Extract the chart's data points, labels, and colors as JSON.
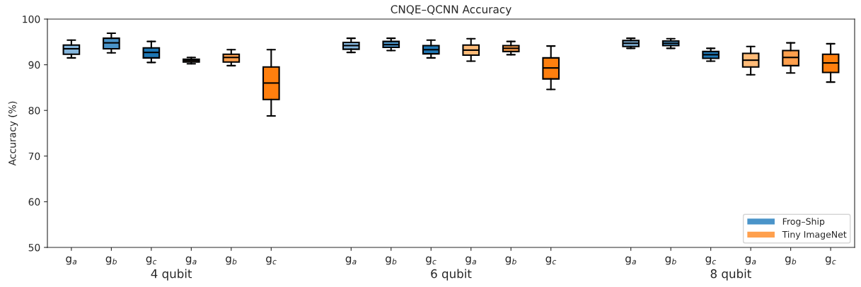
{
  "chart_data": {
    "type": "box",
    "title": "CNQE–QCNN Accuracy",
    "ylabel": "Accuracy (%)",
    "categories": [
      "g$_{a}$",
      "g$_{b}$",
      "g$_{c}$",
      "g$_{a}$",
      "g$_{b}$",
      "g$_{c}$",
      null,
      "g$_{a}$",
      "g$_{b}$",
      "g$_{c}$",
      "g$_{a}$",
      "g$_{b}$",
      "g$_{c}$",
      null,
      "g$_{a}$",
      "g$_{b}$",
      "g$_{c}$",
      "g$_{a}$",
      "g$_{b}$",
      "g$_{c}$"
    ],
    "annotations": [
      "4 qubit",
      "6 qubit",
      "8 qubit"
    ],
    "ylim": [
      50,
      100
    ],
    "yticks": [
      50,
      60,
      70,
      80,
      90,
      100
    ],
    "grid": false,
    "legend": "bottom right",
    "series": [
      {
        "name": "Frog–Ship",
        "color": "#4a94c9",
        "colors": [
          "#85b7de",
          "#4a94c9",
          "#1f77b4",
          null,
          null,
          null,
          null,
          "#85b7de",
          "#4a94c9",
          "#1f77b4",
          null,
          null,
          null,
          null,
          "#85b7de",
          "#4a94c9",
          "#1f77b4",
          null,
          null,
          null
        ],
        "boxes": [
          {
            "low": 91.5,
            "q1": 92.3,
            "median": 93.5,
            "q3": 94.3,
            "high": 95.4
          },
          {
            "low": 92.6,
            "q1": 93.5,
            "median": 94.8,
            "q3": 95.8,
            "high": 96.9
          },
          {
            "low": 90.5,
            "q1": 91.5,
            "median": 92.7,
            "q3": 93.7,
            "high": 95.1
          },
          null,
          null,
          null,
          null,
          {
            "low": 92.7,
            "q1": 93.4,
            "median": 94.2,
            "q3": 94.9,
            "high": 95.8
          },
          {
            "low": 93.1,
            "q1": 93.8,
            "median": 94.4,
            "q3": 95.1,
            "high": 95.8
          },
          {
            "low": 91.5,
            "q1": 92.4,
            "median": 93.3,
            "q3": 94.2,
            "high": 95.4
          },
          null,
          null,
          null,
          null,
          {
            "low": 93.6,
            "q1": 94.0,
            "median": 94.7,
            "q3": 95.3,
            "high": 95.8
          },
          {
            "low": 93.6,
            "q1": 94.2,
            "median": 94.7,
            "q3": 95.2,
            "high": 95.7
          },
          {
            "low": 90.8,
            "q1": 91.4,
            "median": 92.2,
            "q3": 92.9,
            "high": 93.6
          },
          null,
          null,
          null
        ]
      },
      {
        "name": "Tiny ImageNet",
        "color": "#ffa04d",
        "colors": [
          null,
          null,
          null,
          "#ffbb78",
          "#ffa04d",
          "#ff7f0e",
          null,
          null,
          null,
          null,
          "#ffbb78",
          "#ffa04d",
          "#ff7f0e",
          null,
          null,
          null,
          null,
          "#ffbb78",
          "#ffa04d",
          "#ff7f0e"
        ],
        "boxes": [
          null,
          null,
          null,
          {
            "low": 90.2,
            "q1": 90.6,
            "median": 90.9,
            "q3": 91.2,
            "high": 91.6
          },
          {
            "low": 89.8,
            "q1": 90.6,
            "median": 91.6,
            "q3": 92.3,
            "high": 93.3
          },
          {
            "low": 78.8,
            "q1": 82.4,
            "median": 86.0,
            "q3": 89.5,
            "high": 93.3
          },
          null,
          null,
          null,
          null,
          {
            "low": 90.8,
            "q1": 92.1,
            "median": 93.2,
            "q3": 94.3,
            "high": 95.7
          },
          {
            "low": 92.2,
            "q1": 92.9,
            "median": 93.6,
            "q3": 94.2,
            "high": 95.1
          },
          {
            "low": 84.6,
            "q1": 86.9,
            "median": 89.3,
            "q3": 91.5,
            "high": 94.1
          },
          null,
          null,
          null,
          null,
          {
            "low": 87.8,
            "q1": 89.5,
            "median": 91.0,
            "q3": 92.5,
            "high": 94.0
          },
          {
            "low": 88.2,
            "q1": 89.8,
            "median": 91.6,
            "q3": 93.1,
            "high": 94.8
          },
          {
            "low": 86.2,
            "q1": 88.3,
            "median": 90.4,
            "q3": 92.3,
            "high": 94.6
          }
        ]
      }
    ]
  }
}
